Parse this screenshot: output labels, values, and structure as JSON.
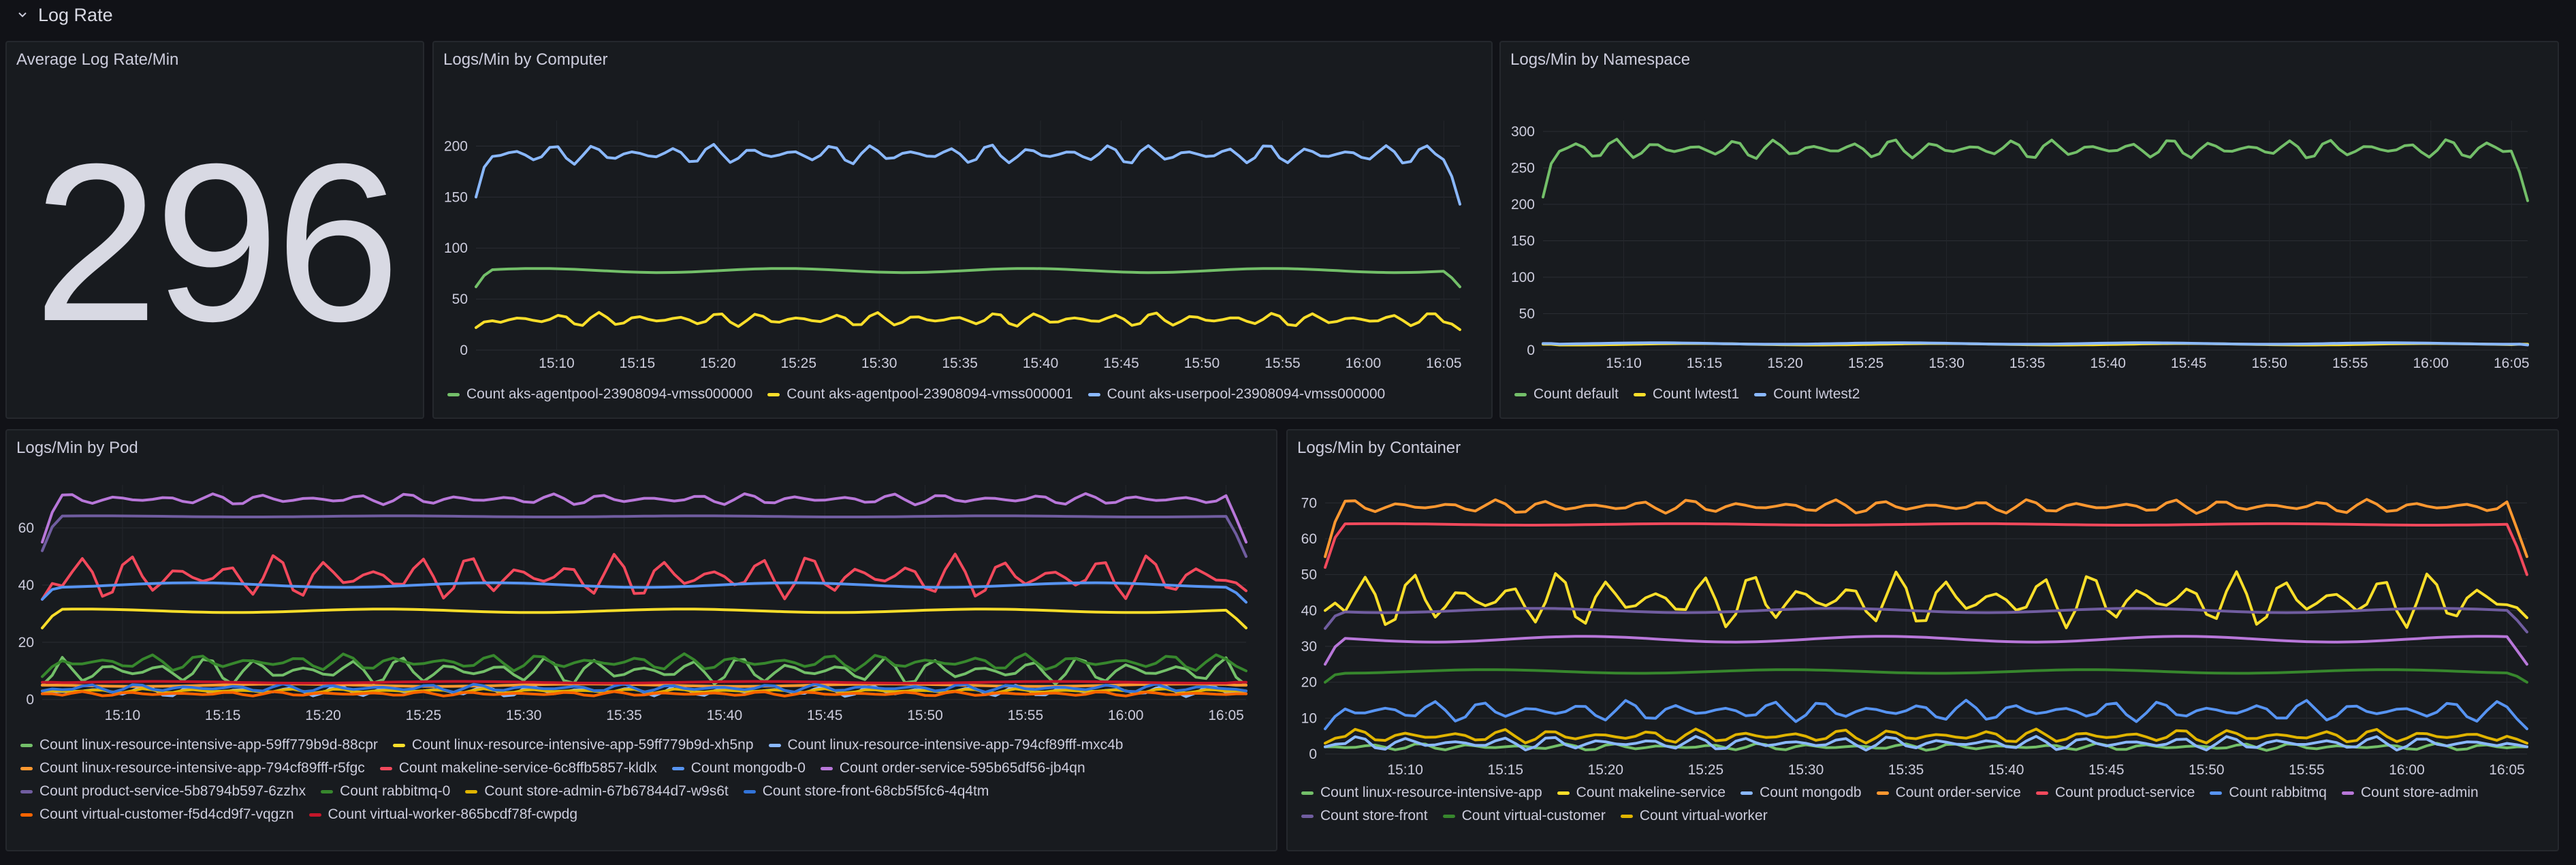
{
  "row": {
    "title": "Log Rate",
    "collapse_icon": "chevron-down-icon"
  },
  "stat_panel": {
    "title": "Average Log Rate/Min",
    "value": "296"
  },
  "time_ticks": [
    "15:10",
    "15:15",
    "15:20",
    "15:25",
    "15:30",
    "15:35",
    "15:40",
    "15:45",
    "15:50",
    "15:55",
    "16:00",
    "16:05"
  ],
  "chart_data": [
    {
      "id": "computer",
      "type": "line",
      "title": "Logs/Min by Computer",
      "x_range": [
        "15:05",
        "16:06"
      ],
      "yticks": [
        0,
        50,
        100,
        150,
        200
      ],
      "ylim": [
        0,
        225
      ],
      "grid": true,
      "legend_position": "bottom",
      "series": [
        {
          "name": "Count aks-agentpool-23908094-vmss000000",
          "color": "#73bf69",
          "base": 78,
          "amp": 2,
          "start": 62,
          "end": 62,
          "jitter": "flat"
        },
        {
          "name": "Count aks-agentpool-23908094-vmss000001",
          "color": "#fade2a",
          "base": 30,
          "amp": 7,
          "start": 22,
          "end": 20,
          "jitter": "wave"
        },
        {
          "name": "Count aks-userpool-23908094-vmss000000",
          "color": "#8ab8ff",
          "base": 192,
          "amp": 10,
          "start": 150,
          "end": 143,
          "jitter": "wave"
        }
      ]
    },
    {
      "id": "namespace",
      "type": "line",
      "title": "Logs/Min by Namespace",
      "x_range": [
        "15:05",
        "16:06"
      ],
      "yticks": [
        0,
        50,
        100,
        150,
        200,
        250,
        300
      ],
      "ylim": [
        0,
        315
      ],
      "grid": true,
      "legend_position": "bottom",
      "series": [
        {
          "name": "Count default",
          "color": "#73bf69",
          "base": 276,
          "amp": 14,
          "start": 210,
          "end": 205,
          "jitter": "wave"
        },
        {
          "name": "Count lwtest1",
          "color": "#fade2a",
          "base": 8,
          "amp": 1,
          "start": 8,
          "end": 8,
          "jitter": "flat"
        },
        {
          "name": "Count lwtest2",
          "color": "#8ab8ff",
          "base": 9,
          "amp": 1,
          "start": 9,
          "end": 7,
          "jitter": "flat"
        }
      ]
    },
    {
      "id": "pod",
      "type": "line",
      "title": "Logs/Min by Pod",
      "x_range": [
        "15:06",
        "16:06"
      ],
      "yticks": [
        0,
        20,
        40,
        60
      ],
      "ylim": [
        0,
        75
      ],
      "grid": true,
      "legend_position": "bottom",
      "series": [
        {
          "name": "Count linux-resource-intensive-app-59ff779b9d-88cpr",
          "color": "#73bf69",
          "base": 10,
          "amp": 5,
          "start": 5,
          "end": 5,
          "jitter": "wave"
        },
        {
          "name": "Count linux-resource-intensive-app-59ff779b9d-xh5np",
          "color": "#fade2a",
          "base": 31,
          "amp": 0.6,
          "start": 25,
          "end": 25,
          "jitter": "flat"
        },
        {
          "name": "Count linux-resource-intensive-app-794cf89fff-mxc4b",
          "color": "#8ab8ff",
          "base": 3,
          "amp": 2,
          "start": 2,
          "end": 2,
          "jitter": "wave"
        },
        {
          "name": "Count linux-resource-intensive-app-794cf89fff-r5fgc",
          "color": "#ff9830",
          "base": 5,
          "amp": 0.4,
          "start": 5,
          "end": 5,
          "jitter": "flat"
        },
        {
          "name": "Count makeline-service-6c8ffb5857-kldlx",
          "color": "#f2495c",
          "base": 43,
          "amp": 8,
          "start": 35,
          "end": 38,
          "jitter": "wave"
        },
        {
          "name": "Count mongodb-0",
          "color": "#5794f2",
          "base": 40,
          "amp": 0.8,
          "start": 35,
          "end": 34,
          "jitter": "flat"
        },
        {
          "name": "Count order-service-595b65df56-jb4qn",
          "color": "#b877d9",
          "base": 70,
          "amp": 2,
          "start": 55,
          "end": 55,
          "jitter": "wave"
        },
        {
          "name": "Count product-service-5b8794b597-6zzhx",
          "color": "#705da0",
          "base": 64,
          "amp": 0.2,
          "start": 52,
          "end": 50,
          "jitter": "flat"
        },
        {
          "name": "Count rabbitmq-0",
          "color": "#37872d",
          "base": 13,
          "amp": 3,
          "start": 8,
          "end": 10,
          "jitter": "wave"
        },
        {
          "name": "Count store-admin-67b67844d7-w9s6t",
          "color": "#e0b400",
          "base": 3,
          "amp": 0.8,
          "start": 3,
          "end": 3,
          "jitter": "wave"
        },
        {
          "name": "Count store-front-68cb5f5fc6-4q4tm",
          "color": "#3274d9",
          "base": 4,
          "amp": 1.5,
          "start": 3,
          "end": 3,
          "jitter": "wave"
        },
        {
          "name": "Count virtual-customer-f5d4cd9f7-vqgzn",
          "color": "#fa6400",
          "base": 2,
          "amp": 0.8,
          "start": 2,
          "end": 2,
          "jitter": "wave"
        },
        {
          "name": "Count virtual-worker-865bcdf78f-cwpdg",
          "color": "#c4162a",
          "base": 6,
          "amp": 0.3,
          "start": 6,
          "end": 6,
          "jitter": "flat"
        }
      ]
    },
    {
      "id": "container",
      "type": "line",
      "title": "Logs/Min by Container",
      "x_range": [
        "15:06",
        "16:06"
      ],
      "yticks": [
        0,
        10,
        20,
        30,
        40,
        50,
        60,
        70
      ],
      "ylim": [
        0,
        75
      ],
      "grid": true,
      "legend_position": "bottom",
      "series": [
        {
          "name": "Count linux-resource-intensive-app",
          "color": "#73bf69",
          "base": 2,
          "amp": 1,
          "start": 2,
          "end": 2,
          "jitter": "wave"
        },
        {
          "name": "Count makeline-service",
          "color": "#fade2a",
          "base": 43,
          "amp": 8,
          "start": 40,
          "end": 38,
          "jitter": "wave"
        },
        {
          "name": "Count mongodb",
          "color": "#8ab8ff",
          "base": 3,
          "amp": 2,
          "start": 2,
          "end": 2,
          "jitter": "wave"
        },
        {
          "name": "Count order-service",
          "color": "#ff9830",
          "base": 69,
          "amp": 2,
          "start": 55,
          "end": 55,
          "jitter": "wave"
        },
        {
          "name": "Count product-service",
          "color": "#f2495c",
          "base": 64,
          "amp": 0.2,
          "start": 52,
          "end": 50,
          "jitter": "flat"
        },
        {
          "name": "Count rabbitmq",
          "color": "#5794f2",
          "base": 12,
          "amp": 3,
          "start": 7,
          "end": 7,
          "jitter": "wave"
        },
        {
          "name": "Count store-admin",
          "color": "#b877d9",
          "base": 32,
          "amp": 0.8,
          "start": 25,
          "end": 25,
          "jitter": "flat"
        },
        {
          "name": "Count store-front",
          "color": "#705da0",
          "base": 40,
          "amp": 0.6,
          "start": 35,
          "end": 34,
          "jitter": "flat"
        },
        {
          "name": "Count virtual-customer",
          "color": "#37872d",
          "base": 23,
          "amp": 0.5,
          "start": 20,
          "end": 20,
          "jitter": "flat"
        },
        {
          "name": "Count virtual-worker",
          "color": "#e0b400",
          "base": 5,
          "amp": 2,
          "start": 3,
          "end": 3,
          "jitter": "wave"
        }
      ]
    }
  ]
}
